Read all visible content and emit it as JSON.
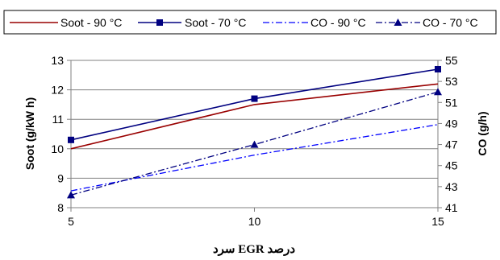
{
  "chart_data": {
    "type": "line",
    "x": [
      5,
      10,
      15
    ],
    "xlabel": "درصد EGR سرد",
    "ylabel_left": "Soot (g/kW h)",
    "ylabel_right": "CO (g/h)",
    "ylim_left": [
      8,
      13
    ],
    "ylim_right": [
      41,
      55
    ],
    "xlim": [
      5,
      15
    ],
    "x_ticks": [
      "5",
      "10",
      "15"
    ],
    "y_ticks_left": [
      "8",
      "9",
      "10",
      "11",
      "12",
      "13"
    ],
    "y_ticks_right": [
      "41",
      "43",
      "45",
      "47",
      "49",
      "51",
      "53",
      "55"
    ],
    "grid": "horizontal",
    "legend_position": "top",
    "series": [
      {
        "name": "Soot - 90 °C",
        "axis": "left",
        "values": [
          10.0,
          11.5,
          12.2
        ],
        "color": "#990000",
        "dash": "solid",
        "marker": "none"
      },
      {
        "name": "Soot - 70 °C",
        "axis": "left",
        "values": [
          10.3,
          11.7,
          12.7
        ],
        "color": "#000080",
        "dash": "solid",
        "marker": "square"
      },
      {
        "name": "CO - 90 °C",
        "axis": "right",
        "values": [
          42.6,
          46.0,
          48.9
        ],
        "color": "#0000ff",
        "dash": "dashdot",
        "marker": "none"
      },
      {
        "name": "CO - 70 °C",
        "axis": "right",
        "values": [
          42.2,
          47.0,
          52.0
        ],
        "color": "#000080",
        "dash": "dashdot",
        "marker": "triangle"
      }
    ]
  }
}
